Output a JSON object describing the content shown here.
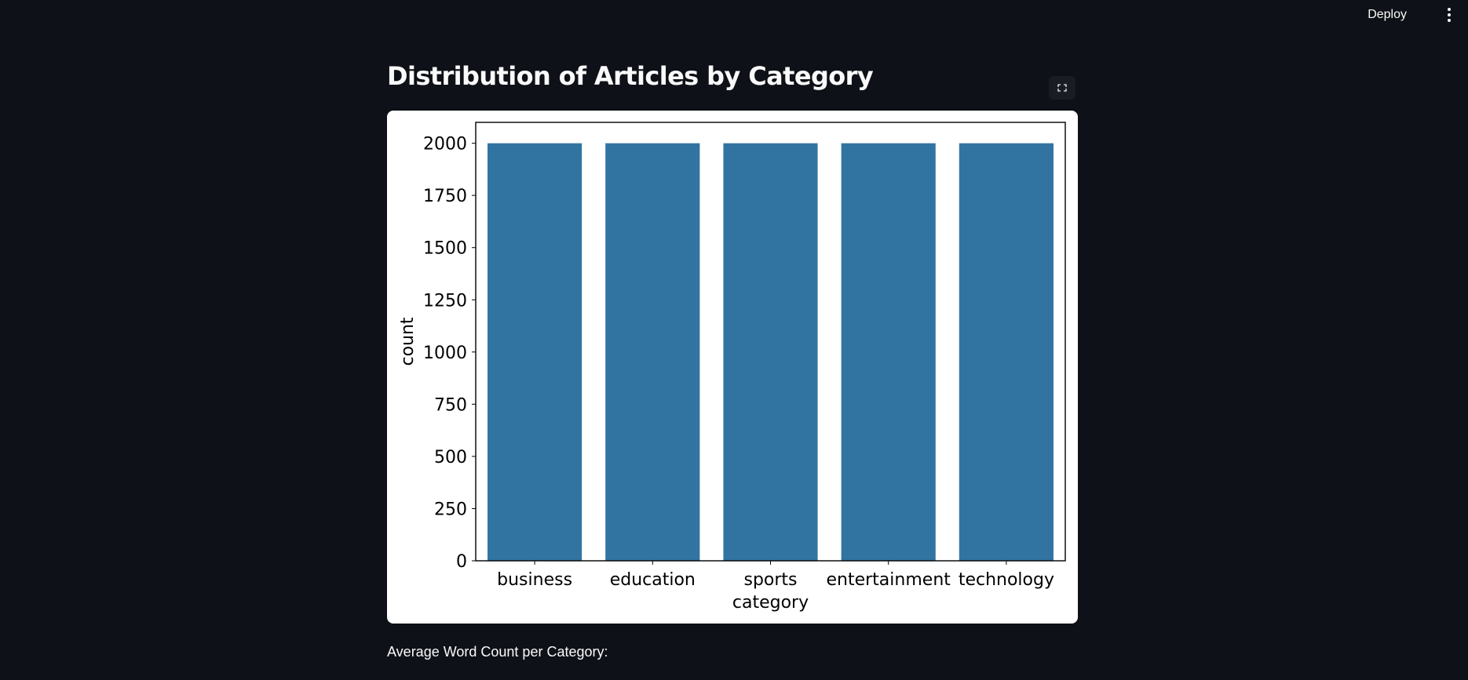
{
  "header": {
    "deploy_label": "Deploy",
    "menu_icon": "more-vertical-icon"
  },
  "main": {
    "title": "Distribution of Articles by Category",
    "fullscreen_icon": "fullscreen-icon",
    "section_label": "Average Word Count per Category:"
  },
  "chart_data": {
    "type": "bar",
    "title": "",
    "xlabel": "category",
    "ylabel": "count",
    "categories": [
      "business",
      "education",
      "sports",
      "entertainment",
      "technology"
    ],
    "values": [
      2000,
      2000,
      2000,
      2000,
      2000
    ],
    "ylim": [
      0,
      2100
    ],
    "yticks": [
      0,
      250,
      500,
      750,
      1000,
      1250,
      1500,
      1750,
      2000
    ],
    "bar_color": "#3274a1",
    "grid": false,
    "legend": "none"
  }
}
